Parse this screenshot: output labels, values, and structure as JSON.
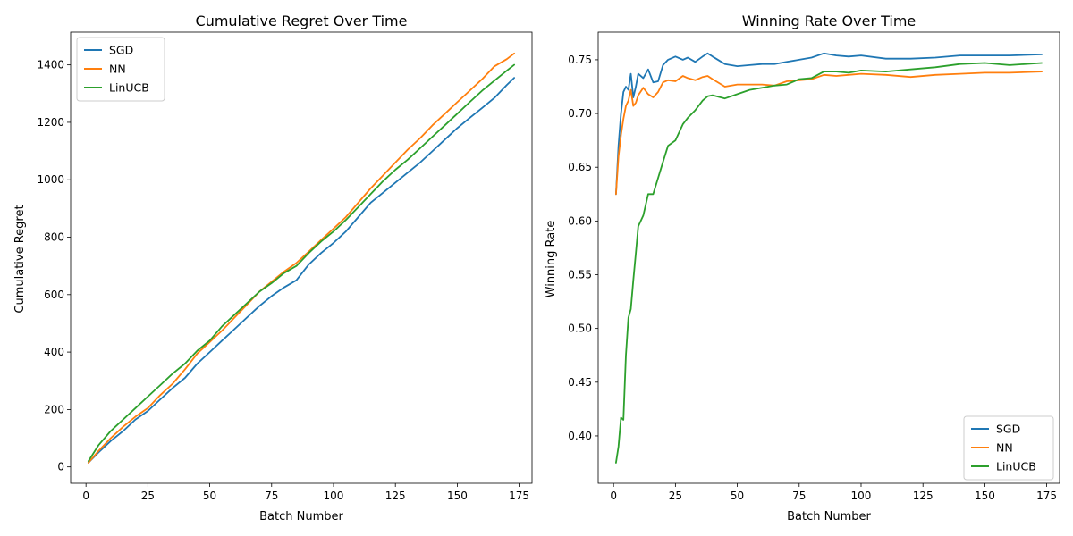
{
  "chart_data": [
    {
      "type": "line",
      "title": "Cumulative Regret Over Time",
      "xlabel": "Batch Number",
      "ylabel": "Cumulative Regret",
      "xlim": [
        -6.2,
        180.2
      ],
      "ylim": [
        -57,
        1514
      ],
      "xticks": [
        0,
        25,
        50,
        75,
        100,
        125,
        150,
        175
      ],
      "xtick_labels": [
        "0",
        "25",
        "50",
        "75",
        "100",
        "125",
        "150",
        "175"
      ],
      "yticks": [
        0,
        200,
        400,
        600,
        800,
        1000,
        1200,
        1400
      ],
      "ytick_labels": [
        "0",
        "200",
        "400",
        "600",
        "800",
        "1000",
        "1200",
        "1400"
      ],
      "legend": "top-left",
      "grid": false,
      "x": [
        1,
        5,
        10,
        15,
        20,
        25,
        30,
        35,
        40,
        45,
        50,
        55,
        60,
        65,
        70,
        75,
        80,
        85,
        90,
        95,
        100,
        105,
        110,
        115,
        120,
        125,
        130,
        135,
        140,
        145,
        150,
        155,
        160,
        165,
        170,
        173
      ],
      "series": [
        {
          "name": "SGD",
          "color": "#1f77b4",
          "values": [
            15,
            50,
            90,
            125,
            165,
            195,
            235,
            275,
            310,
            360,
            400,
            440,
            480,
            520,
            560,
            595,
            625,
            650,
            705,
            745,
            780,
            820,
            870,
            920,
            955,
            990,
            1025,
            1060,
            1100,
            1140,
            1180,
            1215,
            1250,
            1285,
            1330,
            1355
          ]
        },
        {
          "name": "NN",
          "color": "#ff7f0e",
          "values": [
            15,
            55,
            100,
            140,
            175,
            205,
            250,
            290,
            340,
            395,
            435,
            475,
            520,
            565,
            610,
            645,
            680,
            710,
            750,
            790,
            830,
            870,
            920,
            970,
            1015,
            1060,
            1105,
            1145,
            1190,
            1230,
            1270,
            1310,
            1350,
            1395,
            1420,
            1440
          ]
        },
        {
          "name": "LinUCB",
          "color": "#2ca02c",
          "values": [
            20,
            75,
            125,
            165,
            205,
            245,
            285,
            325,
            360,
            405,
            440,
            490,
            530,
            570,
            610,
            640,
            675,
            700,
            745,
            785,
            820,
            860,
            905,
            950,
            995,
            1035,
            1070,
            1110,
            1150,
            1190,
            1230,
            1270,
            1310,
            1345,
            1380,
            1400
          ]
        }
      ]
    },
    {
      "type": "line",
      "title": "Winning Rate Over Time",
      "xlabel": "Batch Number",
      "ylabel": "Winning Rate",
      "xlim": [
        -6.2,
        180.2
      ],
      "ylim": [
        0.3559,
        0.7757
      ],
      "xticks": [
        0,
        25,
        50,
        75,
        100,
        125,
        150,
        175
      ],
      "xtick_labels": [
        "0",
        "25",
        "50",
        "75",
        "100",
        "125",
        "150",
        "175"
      ],
      "yticks": [
        0.4,
        0.45,
        0.5,
        0.55,
        0.6,
        0.65,
        0.7,
        0.75
      ],
      "ytick_labels": [
        "0.40",
        "0.45",
        "0.50",
        "0.55",
        "0.60",
        "0.65",
        "0.70",
        "0.75"
      ],
      "legend": "bottom-right",
      "grid": false,
      "x": [
        1,
        2,
        3,
        4,
        5,
        6,
        7,
        8,
        9,
        10,
        12,
        14,
        16,
        18,
        20,
        22,
        25,
        28,
        30,
        33,
        36,
        38,
        40,
        45,
        50,
        55,
        60,
        65,
        70,
        75,
        80,
        85,
        90,
        95,
        100,
        110,
        120,
        130,
        140,
        150,
        160,
        173
      ],
      "series": [
        {
          "name": "SGD",
          "color": "#1f77b4",
          "values": [
            0.625,
            0.67,
            0.7,
            0.72,
            0.725,
            0.722,
            0.737,
            0.715,
            0.725,
            0.737,
            0.733,
            0.741,
            0.729,
            0.73,
            0.745,
            0.75,
            0.753,
            0.75,
            0.752,
            0.748,
            0.753,
            0.756,
            0.753,
            0.746,
            0.744,
            0.745,
            0.746,
            0.746,
            0.748,
            0.75,
            0.752,
            0.756,
            0.754,
            0.753,
            0.754,
            0.751,
            0.751,
            0.752,
            0.754,
            0.754,
            0.754,
            0.755
          ]
        },
        {
          "name": "NN",
          "color": "#ff7f0e",
          "values": [
            0.625,
            0.66,
            0.68,
            0.695,
            0.707,
            0.712,
            0.722,
            0.707,
            0.71,
            0.717,
            0.724,
            0.718,
            0.715,
            0.72,
            0.729,
            0.731,
            0.73,
            0.735,
            0.733,
            0.731,
            0.734,
            0.735,
            0.732,
            0.725,
            0.727,
            0.727,
            0.727,
            0.726,
            0.73,
            0.731,
            0.732,
            0.736,
            0.735,
            0.736,
            0.737,
            0.736,
            0.734,
            0.736,
            0.737,
            0.738,
            0.738,
            0.739
          ]
        },
        {
          "name": "LinUCB",
          "color": "#2ca02c",
          "values": [
            0.375,
            0.39,
            0.417,
            0.415,
            0.475,
            0.51,
            0.518,
            0.545,
            0.57,
            0.595,
            0.605,
            0.625,
            0.625,
            0.64,
            0.655,
            0.67,
            0.675,
            0.69,
            0.696,
            0.703,
            0.712,
            0.716,
            0.717,
            0.714,
            0.718,
            0.722,
            0.724,
            0.726,
            0.727,
            0.732,
            0.733,
            0.739,
            0.739,
            0.738,
            0.74,
            0.739,
            0.741,
            0.743,
            0.746,
            0.747,
            0.745,
            0.747
          ]
        }
      ]
    }
  ]
}
